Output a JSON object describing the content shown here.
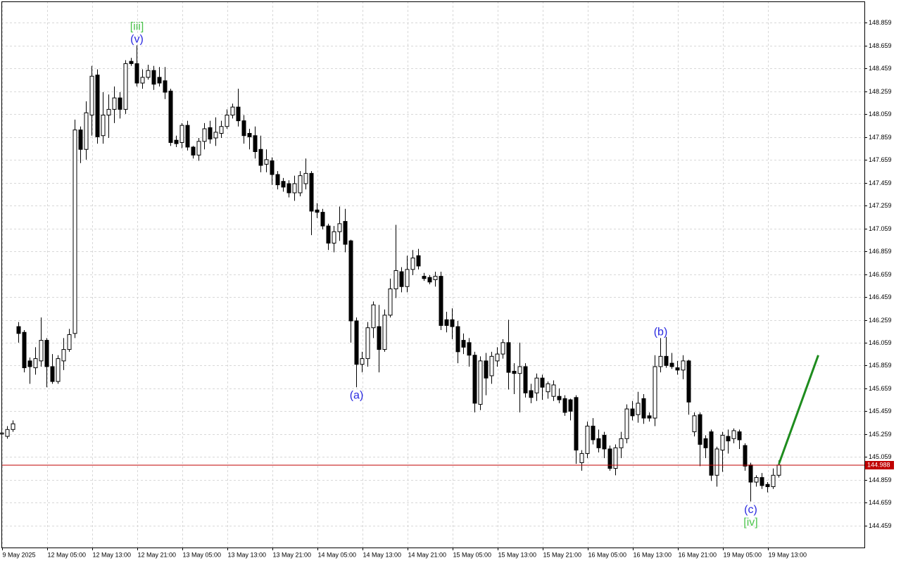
{
  "chart_data": {
    "type": "candlestick",
    "categories": [
      "9 May 2025",
      null,
      null,
      null,
      null,
      null,
      null,
      null,
      "12 May 05:00",
      null,
      null,
      null,
      null,
      null,
      null,
      null,
      "12 May 13:00",
      null,
      null,
      null,
      null,
      null,
      null,
      null,
      "12 May 21:00",
      null,
      null,
      null,
      null,
      null,
      null,
      null,
      "13 May 05:00",
      null,
      null,
      null,
      null,
      null,
      null,
      null,
      "13 May 13:00",
      null,
      null,
      null,
      null,
      null,
      null,
      null,
      "13 May 21:00",
      null,
      null,
      null,
      null,
      null,
      null,
      null,
      "14 May 05:00",
      null,
      null,
      null,
      null,
      null,
      null,
      null,
      "14 May 13:00",
      null,
      null,
      null,
      null,
      null,
      null,
      null,
      "14 May 21:00",
      null,
      null,
      null,
      null,
      null,
      null,
      null,
      "15 May 05:00",
      null,
      null,
      null,
      null,
      null,
      null,
      null,
      "15 May 13:00",
      null,
      null,
      null,
      null,
      null,
      null,
      null,
      "15 May 21:00",
      null,
      null,
      null,
      null,
      null,
      null,
      null,
      "16 May 05:00",
      null,
      null,
      null,
      null,
      null,
      null,
      null,
      "16 May 13:00",
      null,
      null,
      null,
      null,
      null,
      null,
      null,
      "16 May 21:00",
      null,
      null,
      null,
      null,
      null,
      null,
      null,
      "19 May 05:00",
      null,
      null,
      null,
      null,
      null,
      null,
      null,
      "19 May 13:00",
      null,
      null
    ],
    "open": [
      145.26,
      145.24,
      145.3,
      146.2,
      146.15,
      145.9,
      145.84,
      145.9,
      146.08,
      145.85,
      145.72,
      145.9,
      146.0,
      146.14,
      147.92,
      147.75,
      148.05,
      148.4,
      147.87,
      148.05,
      148.1,
      148.2,
      148.1,
      148.52,
      148.5,
      148.33,
      148.38,
      148.44,
      148.38,
      148.35,
      148.26,
      147.83,
      147.81,
      147.96,
      147.77,
      147.7,
      147.82,
      147.94,
      147.85,
      147.89,
      147.95,
      148.05,
      148.12,
      148.0,
      147.89,
      147.87,
      147.75,
      147.62,
      147.65,
      147.53,
      147.47,
      147.45,
      147.37,
      147.37,
      147.45,
      147.54,
      147.22,
      147.2,
      147.08,
      146.93,
      147.03,
      147.12,
      146.95,
      146.25,
      145.87,
      145.92,
      146.19,
      146.2,
      146.0,
      146.3,
      146.53,
      146.68,
      146.55,
      146.7,
      146.82,
      146.64,
      146.63,
      146.61,
      146.64,
      146.26,
      146.26,
      146.2,
      146.08,
      146.06,
      145.95,
      145.52,
      145.9,
      145.77,
      145.9,
      145.96,
      146.06,
      145.81,
      145.79,
      145.85,
      145.64,
      145.62,
      145.75,
      145.63,
      145.59,
      145.59,
      145.57,
      145.56,
      145.58,
      145.01,
      145.09,
      145.33,
      145.22,
      145.25,
      145.13,
      144.96,
      145.14,
      145.22,
      145.48,
      145.43,
      145.57,
      145.42,
      145.4,
      145.85,
      145.94,
      145.88,
      145.84,
      145.82,
      145.9,
      145.28,
      145.43,
      145.22,
      145.28,
      144.9,
      145.12,
      145.24,
      145.22,
      145.28,
      145.16,
      144.99,
      144.84,
      144.88,
      144.82,
      144.8,
      144.9
    ],
    "high": [
      145.29,
      145.33,
      145.38,
      146.24,
      146.17,
      145.93,
      146.02,
      146.28,
      146.1,
      145.96,
      145.95,
      146.1,
      146.18,
      148.01,
      147.95,
      148.17,
      148.48,
      148.45,
      148.25,
      148.23,
      148.3,
      148.25,
      148.53,
      148.55,
      148.66,
      148.45,
      148.49,
      148.48,
      148.47,
      148.47,
      148.28,
      147.87,
      147.98,
      148.0,
      147.78,
      147.85,
      147.98,
      148.0,
      148.03,
      148.0,
      148.1,
      148.15,
      148.28,
      148.05,
      147.93,
      147.95,
      147.87,
      147.75,
      147.68,
      147.56,
      147.5,
      147.48,
      147.52,
      147.56,
      147.67,
      147.56,
      147.28,
      147.23,
      147.1,
      147.08,
      147.25,
      147.23,
      146.96,
      146.28,
      145.98,
      146.24,
      146.42,
      146.39,
      146.35,
      146.62,
      147.09,
      146.72,
      146.82,
      146.87,
      146.88,
      146.67,
      146.65,
      146.68,
      146.68,
      146.33,
      146.36,
      146.25,
      146.14,
      146.1,
      145.98,
      145.94,
      145.97,
      145.98,
      146.02,
      146.09,
      146.26,
      145.88,
      146.06,
      145.88,
      145.7,
      145.79,
      145.78,
      145.72,
      145.73,
      145.66,
      145.6,
      145.57,
      145.6,
      145.12,
      145.37,
      145.4,
      145.3,
      145.28,
      145.16,
      145.17,
      145.28,
      145.52,
      145.55,
      145.63,
      145.61,
      145.45,
      145.95,
      146.1,
      146.11,
      145.97,
      145.9,
      145.95,
      145.91,
      145.45,
      145.45,
      145.25,
      145.3,
      145.15,
      145.28,
      145.3,
      145.31,
      145.3,
      145.18,
      145.01,
      144.9,
      144.92,
      144.84,
      144.96,
      145.03
    ],
    "low": [
      145.24,
      145.22,
      145.28,
      146.06,
      145.8,
      145.7,
      145.78,
      145.85,
      145.67,
      145.7,
      145.7,
      145.82,
      145.98,
      146.1,
      147.63,
      147.66,
      147.87,
      147.8,
      147.8,
      147.85,
      147.98,
      148.02,
      148.06,
      148.48,
      148.3,
      148.28,
      148.36,
      148.27,
      148.3,
      148.19,
      147.78,
      147.77,
      147.76,
      147.74,
      147.67,
      147.65,
      147.75,
      147.8,
      147.78,
      147.85,
      147.93,
      148.02,
      147.95,
      147.8,
      147.75,
      147.67,
      147.55,
      147.55,
      147.44,
      147.4,
      147.38,
      147.33,
      147.3,
      147.34,
      147.4,
      147.0,
      147.15,
      147.05,
      146.87,
      146.85,
      146.95,
      146.85,
      146.06,
      145.67,
      145.8,
      145.85,
      146.1,
      145.8,
      145.98,
      146.28,
      146.45,
      146.5,
      146.5,
      146.65,
      146.7,
      146.6,
      146.57,
      146.55,
      146.17,
      146.15,
      146.09,
      145.88,
      145.96,
      145.85,
      145.45,
      145.47,
      145.6,
      145.7,
      145.85,
      145.92,
      145.65,
      145.61,
      145.45,
      145.58,
      145.53,
      145.55,
      145.56,
      145.57,
      145.55,
      145.53,
      145.42,
      145.38,
      145.0,
      144.94,
      145.05,
      145.17,
      145.1,
      145.05,
      144.94,
      144.9,
      145.05,
      145.18,
      145.38,
      145.36,
      145.35,
      145.37,
      145.33,
      145.8,
      145.84,
      145.83,
      145.78,
      145.74,
      145.43,
      145.24,
      144.98,
      145.05,
      144.85,
      144.8,
      144.93,
      145.09,
      145.18,
      145.13,
      144.94,
      144.67,
      144.8,
      144.78,
      144.75,
      144.78,
      144.88
    ],
    "close": [
      145.27,
      145.3,
      145.35,
      146.14,
      145.84,
      145.85,
      145.92,
      146.08,
      145.85,
      145.72,
      145.92,
      146.0,
      146.13,
      147.92,
      147.75,
      148.07,
      148.39,
      147.86,
      148.05,
      148.1,
      148.2,
      148.1,
      148.5,
      148.5,
      148.33,
      148.38,
      148.44,
      148.32,
      148.33,
      148.25,
      147.81,
      147.8,
      147.96,
      147.77,
      147.7,
      147.82,
      147.93,
      147.84,
      147.9,
      147.95,
      148.05,
      148.12,
      148.0,
      147.87,
      147.86,
      147.73,
      147.61,
      147.66,
      147.53,
      147.44,
      147.42,
      147.37,
      147.45,
      147.52,
      147.54,
      147.21,
      147.2,
      147.08,
      146.93,
      147.03,
      147.1,
      146.92,
      146.25,
      145.87,
      145.92,
      146.19,
      146.39,
      146.0,
      146.3,
      146.53,
      146.69,
      146.55,
      146.7,
      146.8,
      146.73,
      146.62,
      146.59,
      146.64,
      146.21,
      146.21,
      146.2,
      145.98,
      146.02,
      145.95,
      145.53,
      145.9,
      145.75,
      145.94,
      145.96,
      146.06,
      145.8,
      145.79,
      145.85,
      145.62,
      145.58,
      145.75,
      145.67,
      145.7,
      145.69,
      145.56,
      145.45,
      145.46,
      145.12,
      145.09,
      145.33,
      145.21,
      145.14,
      145.13,
      144.96,
      145.14,
      145.22,
      145.48,
      145.42,
      145.53,
      145.4,
      145.4,
      145.85,
      145.94,
      145.86,
      145.85,
      145.82,
      145.9,
      145.54,
      145.42,
      145.17,
      145.14,
      144.9,
      145.13,
      145.25,
      145.2,
      145.29,
      145.21,
      144.98,
      144.84,
      144.88,
      144.81,
      144.8,
      144.9,
      144.99
    ],
    "up_color": "#ffffff",
    "down_color": "#000000",
    "ylim": [
      144.268,
      149.044
    ],
    "yticks": [
      144.459,
      144.659,
      144.859,
      145.059,
      145.259,
      145.459,
      145.659,
      145.859,
      146.059,
      146.259,
      146.459,
      146.659,
      146.859,
      147.059,
      147.259,
      147.459,
      147.659,
      147.859,
      148.059,
      148.259,
      148.459,
      148.659,
      148.859
    ],
    "grid": true,
    "last_price": 144.988,
    "last_price_color": "#c00000",
    "wave_labels": [
      {
        "text": "(v)",
        "color": "#2a2ae0",
        "index": 24,
        "position": "above"
      },
      {
        "text": "[iii]",
        "color": "#4cc44c",
        "index": 24,
        "position": "above"
      },
      {
        "text": "(a)",
        "color": "#2a2ae0",
        "index": 63,
        "position": "below"
      },
      {
        "text": "(b)",
        "color": "#2a2ae0",
        "index": 117,
        "position": "above"
      },
      {
        "text": "(c)",
        "color": "#2a2ae0",
        "index": 133,
        "position": "below"
      },
      {
        "text": "[iv]",
        "color": "#4cc44c",
        "index": 133,
        "position": "below"
      }
    ],
    "projection": {
      "color": "#1e8c1e",
      "x": [
        138,
        145
      ],
      "y": [
        144.998,
        145.95
      ]
    }
  }
}
